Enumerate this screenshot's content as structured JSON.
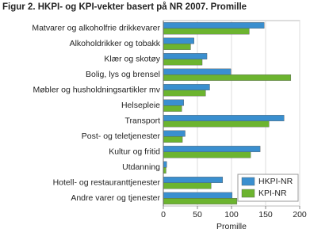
{
  "chart_data": {
    "type": "hbar",
    "title": "Figur 2. HKPI- og KPI-vekter basert på NR 2007. Promille",
    "x_label": "Promille",
    "categories": [
      "Matvarer og alkoholfrie drikkevarer",
      "Alkoholdrikker og tobakk",
      "Klær og skotøy",
      "Bolig, lys og brensel",
      "Møbler og husholdningsartikler mv",
      "Helsepleie",
      "Transport",
      "Post- og teletjenester",
      "Kultur og fritid",
      "Utdanning",
      "Hotell- og restauranttjenester",
      "Andre varer og tjenester"
    ],
    "series": [
      {
        "name": "HKPI-NR",
        "color": "#3a8fcf",
        "values": [
          148,
          45,
          64,
          99,
          68,
          30,
          177,
          32,
          142,
          5,
          87,
          101
        ]
      },
      {
        "name": "KPI-NR",
        "color": "#6cb42f",
        "values": [
          126,
          40,
          57,
          187,
          62,
          27,
          155,
          28,
          128,
          4,
          70,
          108
        ]
      }
    ],
    "xlim": [
      0,
      200
    ],
    "xticks": [
      0,
      50,
      100,
      150,
      200
    ],
    "grid": true,
    "legend": "lower-right"
  }
}
